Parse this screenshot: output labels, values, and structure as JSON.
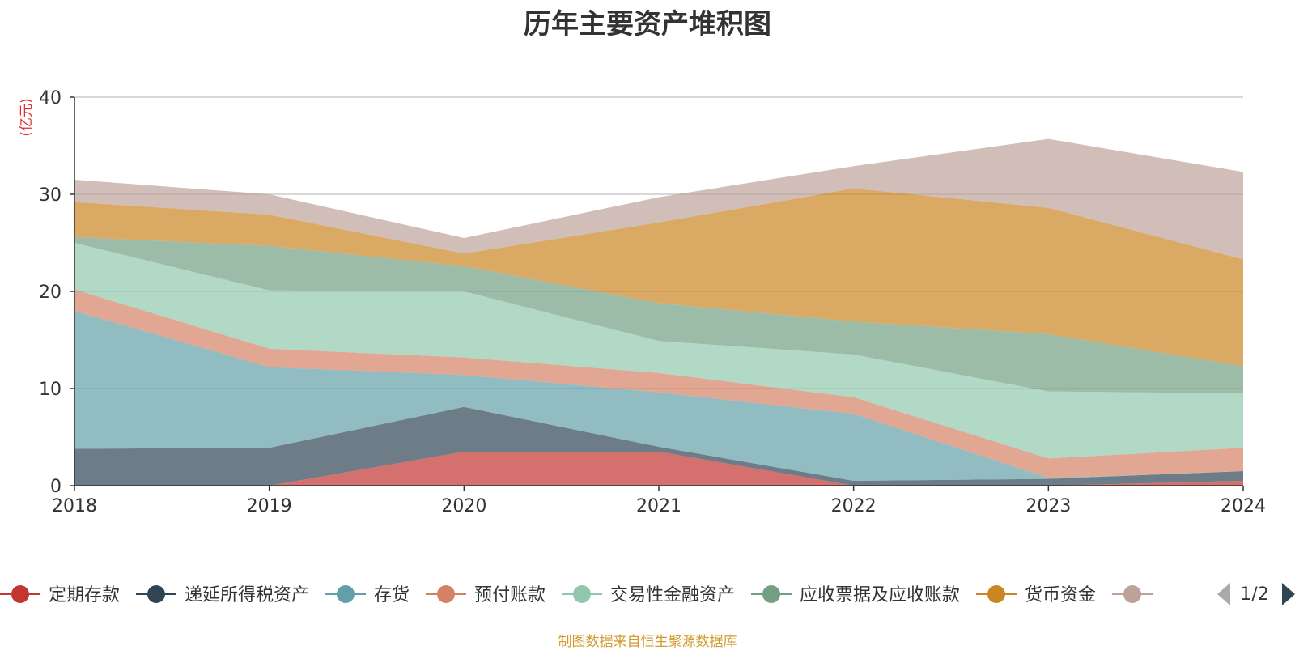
{
  "chart_data": {
    "type": "area",
    "title": "历年主要资产堆积图",
    "ylabel": "(亿元)",
    "x": [
      "2018",
      "2019",
      "2020",
      "2021",
      "2022",
      "2023",
      "2024"
    ],
    "yticks": [
      "0",
      "10",
      "20",
      "30",
      "40"
    ],
    "ylim": [
      0,
      40
    ],
    "grid": true,
    "stacked": true,
    "legend_position": "bottom",
    "series": [
      {
        "name": "定期存款",
        "color": "#c23531",
        "values": [
          0,
          0,
          3.5,
          3.5,
          0,
          0,
          0.5
        ]
      },
      {
        "name": "递延所得税资产",
        "color": "#2f4554",
        "values": [
          3.8,
          3.9,
          4.6,
          0.5,
          0.5,
          0.7,
          1.0
        ]
      },
      {
        "name": "存货",
        "color": "#61a0a8",
        "values": [
          14.2,
          8.3,
          3.3,
          5.6,
          6.9,
          0.1,
          0
        ]
      },
      {
        "name": "预付账款",
        "color": "#d48265",
        "values": [
          2.2,
          1.9,
          1.8,
          2.0,
          1.7,
          2.0,
          2.4
        ]
      },
      {
        "name": "交易性金融资产",
        "color": "#91c7ae",
        "values": [
          4.8,
          6.0,
          6.8,
          3.3,
          4.4,
          6.9,
          5.6
        ]
      },
      {
        "name": "应收票据及应收账款",
        "color": "#749f83",
        "values": [
          0.6,
          4.6,
          2.6,
          3.9,
          3.4,
          5.9,
          2.8
        ]
      },
      {
        "name": "货币资金",
        "color": "#ca8622",
        "values": [
          3.6,
          3.2,
          1.3,
          8.3,
          13.7,
          13.0,
          11.0
        ]
      },
      {
        "name": "",
        "color": "#bda29a",
        "values": [
          2.3,
          2.1,
          1.6,
          2.6,
          2.3,
          7.1,
          9.0
        ]
      }
    ]
  },
  "legend": {
    "page": "1/2",
    "prev_icon": "triangle-left-icon",
    "next_icon": "triangle-right-icon"
  },
  "source_note": "制图数据来自恒生聚源数据库"
}
